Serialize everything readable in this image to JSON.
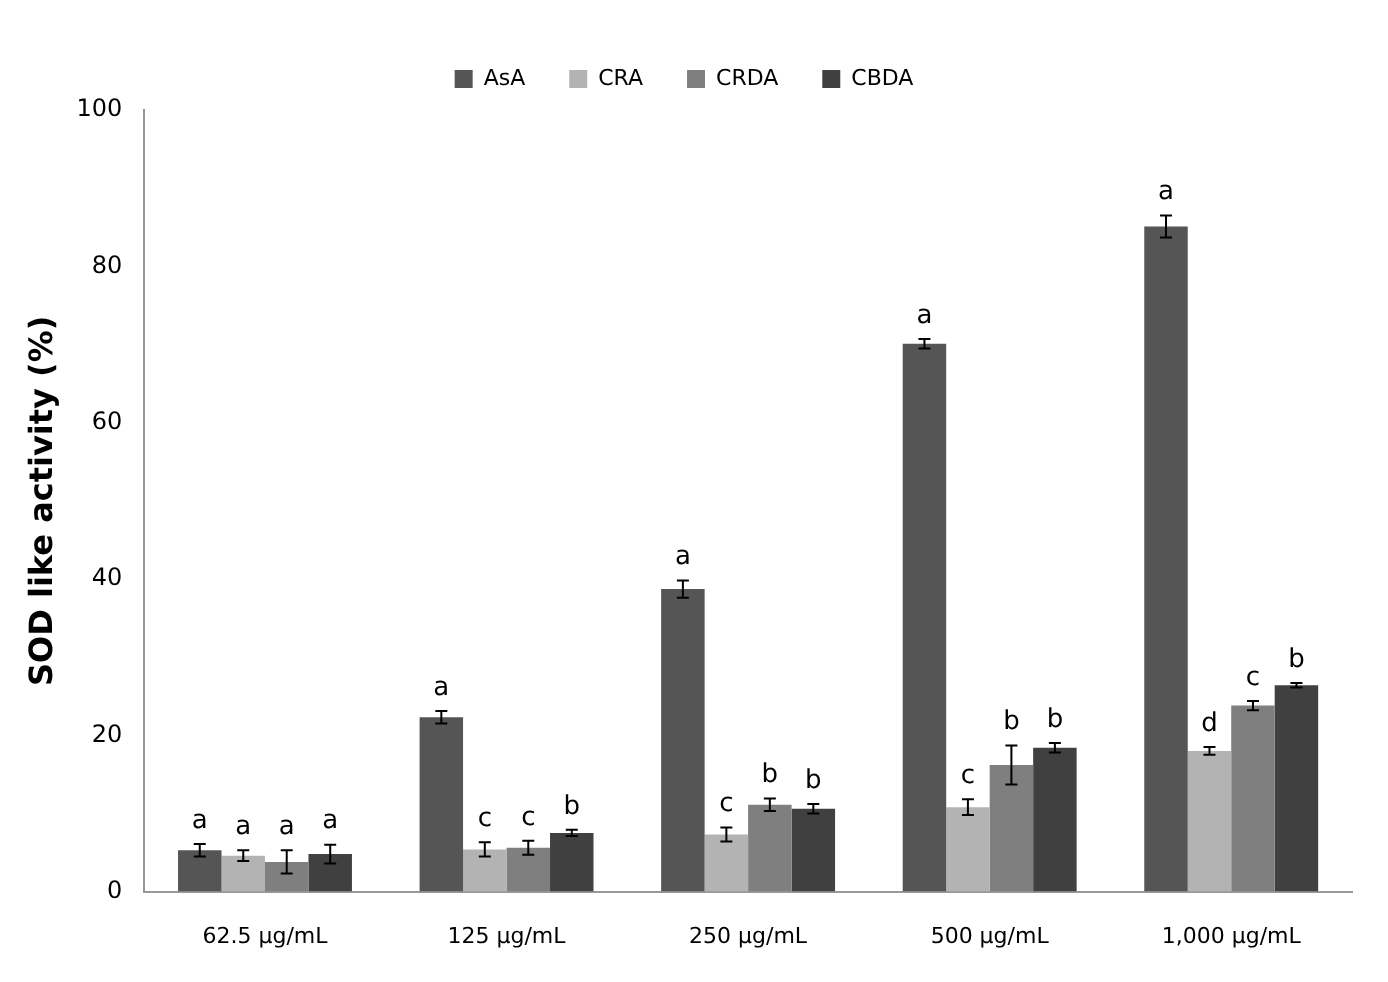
{
  "chart_data": {
    "type": "bar",
    "ylabel": "SOD like activity (%)",
    "categories": [
      "62.5 μg/mL",
      "125 μg/mL",
      "250 μg/mL",
      "500 μg/mL",
      "1,000 μg/mL"
    ],
    "series": [
      {
        "name": "AsA",
        "color": "#555555",
        "values": [
          5.3,
          22.3,
          38.7,
          70.1,
          85.1
        ],
        "errors": [
          0.8,
          0.8,
          1.1,
          0.6,
          1.4
        ],
        "value_labels": [
          "a",
          "a",
          "a",
          "a",
          "a"
        ]
      },
      {
        "name": "CRA",
        "color": "#b3b3b3",
        "values": [
          4.6,
          5.4,
          7.3,
          10.8,
          18.0
        ],
        "errors": [
          0.7,
          0.9,
          0.9,
          1.0,
          0.5
        ],
        "value_labels": [
          "a",
          "c",
          "c",
          "c",
          "d"
        ]
      },
      {
        "name": "CRDA",
        "color": "#7f7f7f",
        "values": [
          3.8,
          5.6,
          11.1,
          16.2,
          23.8
        ],
        "errors": [
          1.5,
          0.9,
          0.8,
          2.5,
          0.6
        ],
        "value_labels": [
          "a",
          "c",
          "b",
          "b",
          "c"
        ]
      },
      {
        "name": "CBDA",
        "color": "#404040",
        "values": [
          4.8,
          7.5,
          10.6,
          18.4,
          26.4
        ],
        "errors": [
          1.2,
          0.4,
          0.6,
          0.6,
          0.3
        ],
        "value_labels": [
          "a",
          "b",
          "b",
          "b",
          "b"
        ]
      }
    ],
    "ylim": [
      0,
      100
    ],
    "yticks": [
      0,
      20,
      40,
      60,
      80,
      100
    ],
    "grid": false,
    "legend": "top"
  }
}
